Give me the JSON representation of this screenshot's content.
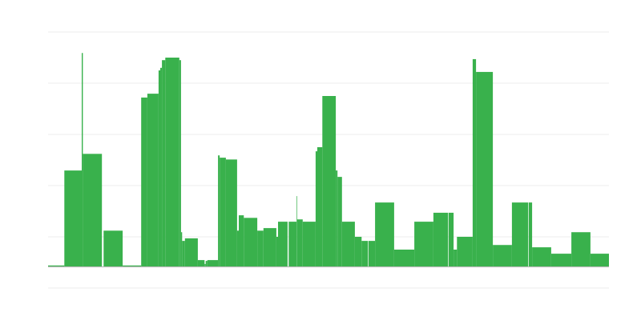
{
  "chart_data": {
    "type": "bar",
    "title": "",
    "xlabel": "",
    "ylabel": "",
    "xlim": [
      0,
      100
    ],
    "ylim": [
      -0.42,
      4.58
    ],
    "grid": true,
    "gridlines_y": [
      -0.42,
      0.58,
      1.58,
      2.58,
      3.58,
      4.58
    ],
    "legend": "none",
    "color": "#39b14c",
    "grid_color": "#ececec",
    "baseline_color": "#b0b0b0",
    "segments": [
      [
        0,
        2.9,
        0.02
      ],
      [
        2.9,
        6,
        1.875
      ],
      [
        6,
        6.2,
        4.17
      ],
      [
        6.2,
        9.6,
        2.2
      ],
      [
        9.9,
        13.3,
        0.7
      ],
      [
        13.3,
        16.6,
        0.02
      ],
      [
        16.6,
        17.7,
        3.3
      ],
      [
        17.7,
        19.7,
        3.375
      ],
      [
        19.7,
        20,
        3.83
      ],
      [
        20,
        20.3,
        3.88
      ],
      [
        20.3,
        20.9,
        4.03
      ],
      [
        20.9,
        23.4,
        4.08
      ],
      [
        23.4,
        23.7,
        4.03
      ],
      [
        23.7,
        23.9,
        0.67
      ],
      [
        23.9,
        24.4,
        0.5
      ],
      [
        24.4,
        26.7,
        0.55
      ],
      [
        26.7,
        27.9,
        0.125
      ],
      [
        27.9,
        28.1,
        0.05
      ],
      [
        28.1,
        28.4,
        0.11
      ],
      [
        28.4,
        30.3,
        0.125
      ],
      [
        30.3,
        30.6,
        2.17
      ],
      [
        30.6,
        31.7,
        2.125
      ],
      [
        31.7,
        33.7,
        2.09
      ],
      [
        33.7,
        34,
        0.7
      ],
      [
        34,
        34.9,
        1.0
      ],
      [
        34.9,
        37.3,
        0.95
      ],
      [
        37.3,
        38.4,
        0.7
      ],
      [
        38.4,
        40.7,
        0.75
      ],
      [
        40.7,
        41,
        0.58
      ],
      [
        41,
        42.7,
        0.875
      ],
      [
        42.9,
        44.3,
        0.875
      ],
      [
        44.3,
        44.4,
        1.375
      ],
      [
        44.4,
        45.4,
        0.92
      ],
      [
        45.4,
        47.7,
        0.875
      ],
      [
        47.7,
        48,
        2.25
      ],
      [
        48,
        48.9,
        2.33
      ],
      [
        48.9,
        51.3,
        3.33
      ],
      [
        51.3,
        51.6,
        1.875
      ],
      [
        51.6,
        52.4,
        1.75
      ],
      [
        52.4,
        54.7,
        0.875
      ],
      [
        54.7,
        55.9,
        0.58
      ],
      [
        55.9,
        57,
        0.5
      ],
      [
        57.1,
        58.3,
        0.5
      ],
      [
        58.3,
        61.7,
        1.25
      ],
      [
        61.7,
        65.3,
        0.33
      ],
      [
        65.3,
        68.7,
        0.875
      ],
      [
        68.7,
        71.3,
        1.05
      ],
      [
        71.4,
        72.3,
        1.05
      ],
      [
        72.3,
        72.9,
        0.33
      ],
      [
        72.9,
        75.7,
        0.58
      ],
      [
        75.7,
        76.3,
        4.05
      ],
      [
        76.3,
        79.3,
        3.8
      ],
      [
        79.3,
        82.7,
        0.42
      ],
      [
        82.7,
        85.6,
        1.25
      ],
      [
        85.7,
        86.3,
        1.25
      ],
      [
        86.3,
        89.7,
        0.375
      ],
      [
        89.7,
        93.3,
        0.25
      ],
      [
        93.3,
        96.7,
        0.67
      ],
      [
        96.7,
        100,
        0.25
      ]
    ]
  }
}
